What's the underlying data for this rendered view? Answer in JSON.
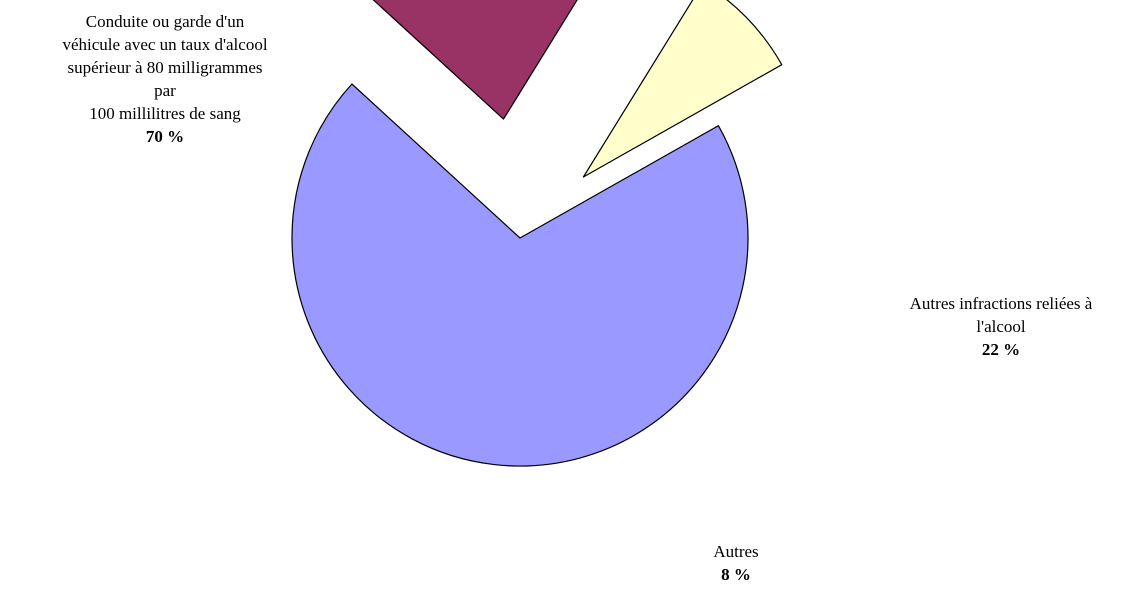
{
  "chart_data": {
    "type": "pie",
    "exploded": true,
    "slices": [
      {
        "label_lines": [
          "Conduite ou garde d'un",
          "véhicule avec un taux d'alcool",
          "supérieur à 80 milligrammes",
          "par",
          "100 millilitres  de sang"
        ],
        "pct_text": "70 %",
        "value": 70,
        "color": "#9999FF"
      },
      {
        "label_lines": [
          "Autres infractions reliées à",
          "l'alcool"
        ],
        "pct_text": "22 %",
        "value": 22,
        "color": "#993366"
      },
      {
        "label_lines": [
          "Autres"
        ],
        "pct_text": "8 %",
        "value": 8,
        "color": "#FFFFCC"
      }
    ]
  }
}
